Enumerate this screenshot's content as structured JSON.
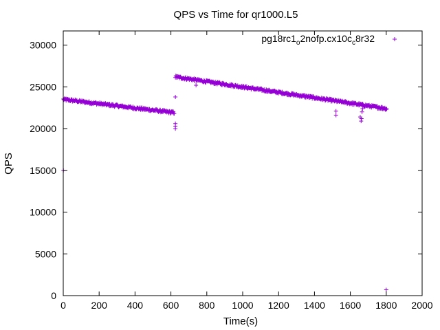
{
  "chart_data": {
    "type": "scatter",
    "title": "QPS vs Time for qr1000.L5",
    "xlabel": "Time(s)",
    "ylabel": "QPS",
    "xlim": [
      0,
      2000
    ],
    "ylim": [
      0,
      31700
    ],
    "xticks": [
      0,
      200,
      400,
      600,
      800,
      1000,
      1200,
      1400,
      1600,
      1800,
      2000
    ],
    "yticks": [
      0,
      5000,
      10000,
      15000,
      20000,
      25000,
      30000
    ],
    "grid": false,
    "legend_position": "top-right",
    "marker": "+",
    "color": "#9400d3",
    "series": [
      {
        "name": "pg18rc1_o2nofp.cx10c_c8r32",
        "legend_parts": {
          "a": "pg18rc1",
          "b": "o",
          "c": "2nofp.cx10c",
          "d": "c",
          "e": "8r32"
        },
        "segments": [
          {
            "x_start": 1,
            "x_end": 620,
            "step": 5,
            "y_start": 23500,
            "y_end": 21900,
            "spread": 300
          },
          {
            "x_start": 625,
            "x_end": 1800,
            "step": 5,
            "y_start": 26200,
            "y_end": 22400,
            "spread": 300
          }
        ],
        "points": [
          [
            1,
            15000
          ],
          [
            625,
            20000
          ],
          [
            625,
            20300
          ],
          [
            625,
            20600
          ],
          [
            625,
            23800
          ],
          [
            740,
            25200
          ],
          [
            1520,
            21600
          ],
          [
            1520,
            22100
          ],
          [
            1655,
            21400
          ],
          [
            1660,
            20900
          ],
          [
            1662,
            21200
          ],
          [
            1665,
            22000
          ],
          [
            1668,
            22400
          ],
          [
            1800,
            700
          ]
        ]
      }
    ]
  }
}
